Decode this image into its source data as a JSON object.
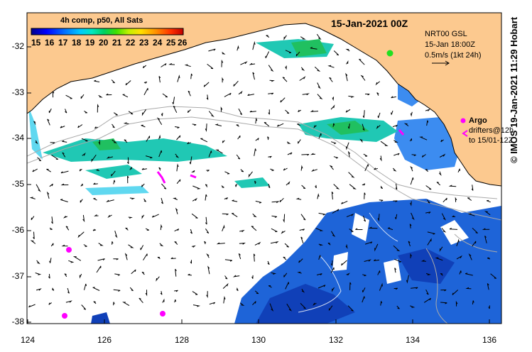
{
  "title": "15-Jan-2021 00Z",
  "colorbar": {
    "title": "4h comp, p50, All Sats",
    "ticks": [
      "15",
      "16",
      "17",
      "18",
      "19",
      "20",
      "21",
      "22",
      "23",
      "24",
      "25",
      "26"
    ],
    "stops": [
      "#00008b",
      "#0000ff",
      "#0070ff",
      "#00c8ff",
      "#00e8c0",
      "#00d060",
      "#40e000",
      "#c0f000",
      "#ffe000",
      "#ff9000",
      "#ff3000",
      "#c00000"
    ]
  },
  "legend": {
    "line1": "NRT00 GSL",
    "line2": "15-Jan 18:00Z",
    "line3": "0.5m/s (1kt 24h)"
  },
  "argo": {
    "label": "Argo",
    "line2": "drifters@12h",
    "line3": "to 15/01-12Z"
  },
  "credit": "© IMOS 19-Jan-2021 11:29 Hobart",
  "axes": {
    "y_ticks": [
      "-32",
      "-33",
      "-34",
      "-35",
      "-36",
      "-37",
      "-38"
    ],
    "x_ticks": [
      "124",
      "126",
      "128",
      "130",
      "132",
      "134",
      "136"
    ]
  },
  "colors": {
    "land": "#fcc98f",
    "argo": "#ff00ff",
    "sst_cool": "#1e64d8",
    "sst_teal": "#20c8b4",
    "sst_green": "#20c060"
  },
  "icons": [
    "argo-float-icon",
    "current-vector-arrows"
  ]
}
